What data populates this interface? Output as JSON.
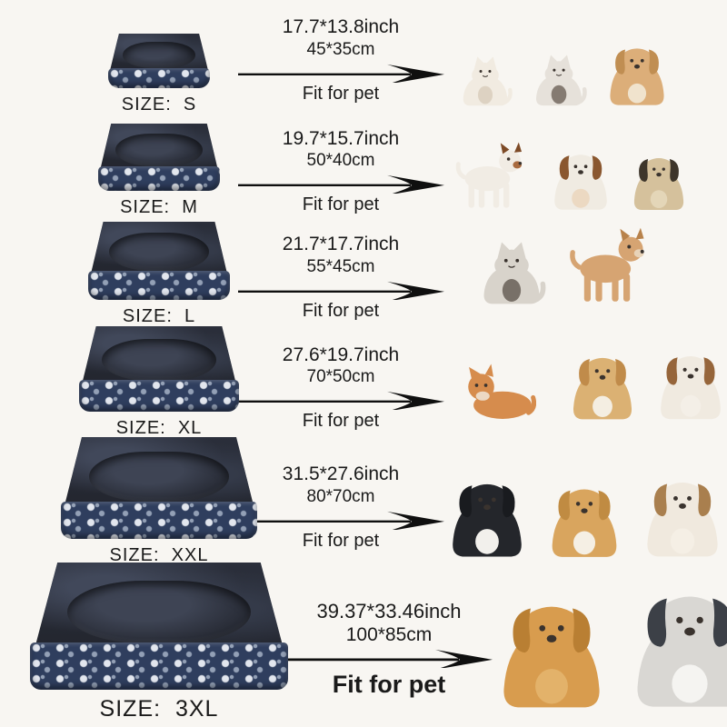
{
  "palette": {
    "background": "#f8f6f2",
    "text": "#1a1a1a",
    "arrow": "#0f0f0f"
  },
  "bed_colors": {
    "plush_dark": "#23262f",
    "plush_light": "#41485a",
    "band": "#2f3e5e",
    "pattern_light": "#e2e6ee",
    "pattern_dim": "#93a0b6"
  },
  "rows": [
    {
      "size_label": "SIZE:  S",
      "inch": "17.7*13.8inch",
      "cm": "45*35cm",
      "fit_label": "Fit for pet",
      "pets": [
        {
          "name": "white-kitten",
          "type": "cat",
          "c1": "#f1ebe1",
          "c2": "#ddd2c2",
          "w": 62,
          "h": 76
        },
        {
          "name": "siamese-kitten",
          "type": "cat",
          "c1": "#e6e1da",
          "c2": "#857b72",
          "w": 64,
          "h": 80
        },
        {
          "name": "tan-puppy",
          "type": "dog",
          "c1": "#dcae79",
          "c2": "#f0e3cd",
          "c3": "#c08e52",
          "w": 72,
          "h": 78
        }
      ]
    },
    {
      "size_label": "SIZE:  M",
      "inch": "19.7*15.7inch",
      "cm": "50*40cm",
      "fit_label": "Fit for pet",
      "pets": [
        {
          "name": "jack-russell-puppy-standing",
          "type": "dog-stand",
          "c1": "#f1ece4",
          "c2": "#a96b3f",
          "c3": "#7d4a26",
          "w": 96,
          "h": 80
        },
        {
          "name": "jack-russell-puppy-sitting",
          "type": "dog",
          "c1": "#f0ebe2",
          "c2": "#ecd9c2",
          "c3": "#8a572f",
          "w": 70,
          "h": 74
        },
        {
          "name": "pug-puppy",
          "type": "dog",
          "c1": "#d5c19c",
          "c2": "#e4d6b8",
          "c3": "#3d352b",
          "w": 66,
          "h": 70
        }
      ]
    },
    {
      "size_label": "SIZE:  L",
      "inch": "21.7*17.7inch",
      "cm": "55*45cm",
      "fit_label": "Fit for pet",
      "pets": [
        {
          "name": "gray-white-longhair-cat",
          "type": "cat",
          "c1": "#d8d3cb",
          "c2": "#787068",
          "w": 78,
          "h": 96
        },
        {
          "name": "chihuahua",
          "type": "dog-stand",
          "c1": "#d6a472",
          "c2": "#e8d3b8",
          "c3": "#b8824b",
          "w": 96,
          "h": 90
        }
      ]
    },
    {
      "size_label": "SIZE:  XL",
      "inch": "27.6*19.7inch",
      "cm": "70*50cm",
      "fit_label": "Fit for pet",
      "pets": [
        {
          "name": "orange-tabby-cat-lying",
          "type": "cat-lie",
          "c1": "#d68c4d",
          "c2": "#ecd9c4",
          "w": 116,
          "h": 84
        },
        {
          "name": "corgi-puppy",
          "type": "dog",
          "c1": "#dbb173",
          "c2": "#f4eee2",
          "c3": "#c08b4a",
          "w": 78,
          "h": 94
        },
        {
          "name": "jack-russell-terrier",
          "type": "dog",
          "c1": "#f0eae0",
          "c2": "#f4efe7",
          "c3": "#96653a",
          "w": 80,
          "h": 94
        }
      ]
    },
    {
      "size_label": "SIZE:  XXL",
      "inch": "31.5*27.6inch",
      "cm": "80*70cm",
      "fit_label": "Fit for pet",
      "pets": [
        {
          "name": "border-collie",
          "type": "dog",
          "c1": "#24262b",
          "c2": "#f2f0ec",
          "c3": "#191b1f",
          "w": 92,
          "h": 106
        },
        {
          "name": "corgi",
          "type": "dog",
          "c1": "#d9a55e",
          "c2": "#f5efe4",
          "c3": "#c08b42",
          "w": 86,
          "h": 102
        },
        {
          "name": "english-bulldog",
          "type": "dog",
          "c1": "#f0e9de",
          "c2": "#f5efe5",
          "c3": "#a97f4e",
          "w": 94,
          "h": 98
        }
      ]
    },
    {
      "size_label": "SIZE:  3XL",
      "inch": "39.37*33.46inch",
      "cm": "100*85cm",
      "fit_label": "Fit for pet",
      "pets": [
        {
          "name": "golden-retriever",
          "type": "dog",
          "c1": "#d89c4e",
          "c2": "#e3b26a",
          "c3": "#b97f33",
          "w": 128,
          "h": 150
        },
        {
          "name": "alaskan-malamute",
          "type": "dog",
          "c1": "#d9d7d3",
          "c2": "#f5f4f1",
          "c3": "#3c4047",
          "w": 140,
          "h": 158
        }
      ]
    }
  ]
}
